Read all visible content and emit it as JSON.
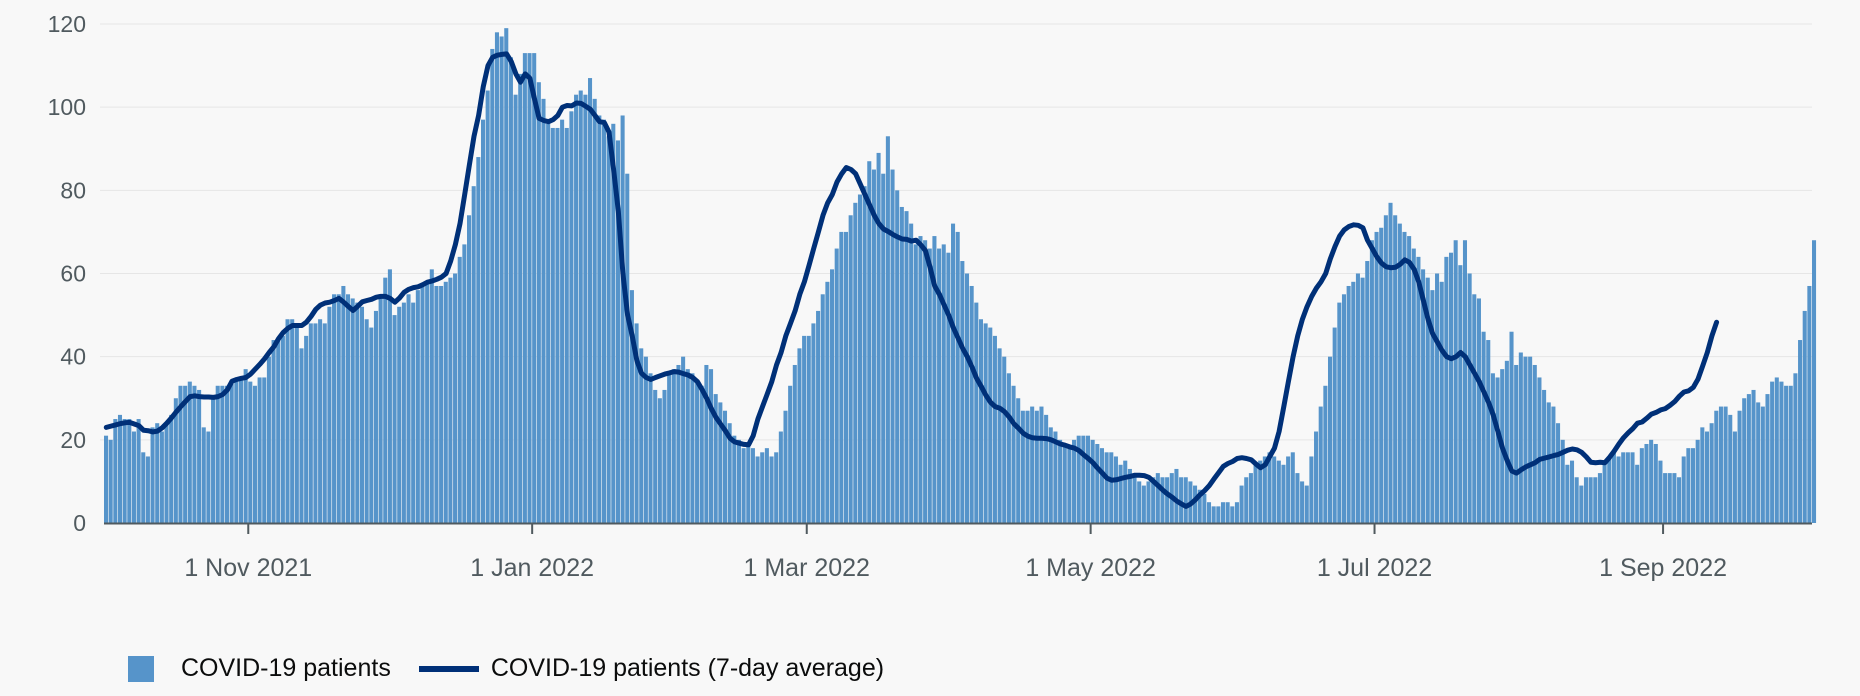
{
  "colors": {
    "bar": "#5694ca",
    "line": "#003078",
    "grid": "#e6e6e6",
    "axis": "#505a5f"
  },
  "chart_data": {
    "type": "bar",
    "title": "",
    "xlabel": "",
    "ylabel": "",
    "ylim": [
      0,
      120
    ],
    "yticks": [
      0,
      20,
      40,
      60,
      80,
      100,
      120
    ],
    "xlim": [
      "2021-10-01",
      "2022-10-03"
    ],
    "xticks": [
      {
        "date": "2021-11-01",
        "label": "1 Nov 2021"
      },
      {
        "date": "2022-01-01",
        "label": "1 Jan 2022"
      },
      {
        "date": "2022-03-01",
        "label": "1 Mar 2022"
      },
      {
        "date": "2022-05-01",
        "label": "1 May 2022"
      },
      {
        "date": "2022-07-01",
        "label": "1 Jul 2022"
      },
      {
        "date": "2022-09-01",
        "label": "1 Sep 2022"
      }
    ],
    "grid": true,
    "legend_position": "bottom-left",
    "start_date": "2021-10-01",
    "series": [
      {
        "name": "COVID-19 patients",
        "type": "bar",
        "values": [
          21,
          20,
          25,
          26,
          25,
          25,
          22,
          25,
          17,
          16,
          23,
          24,
          22,
          24,
          26,
          30,
          33,
          33,
          34,
          33,
          32,
          23,
          22,
          30,
          33,
          33,
          33,
          34,
          34,
          35,
          37,
          34,
          33,
          35,
          35,
          40,
          44,
          44,
          45,
          49,
          49,
          47,
          42,
          45,
          48,
          48,
          49,
          48,
          52,
          55,
          55,
          57,
          55,
          54,
          53,
          52,
          49,
          47,
          51,
          55,
          59,
          61,
          50,
          52,
          53,
          55,
          53,
          56,
          57,
          58,
          61,
          57,
          57,
          58,
          59,
          60,
          64,
          67,
          74,
          81,
          88,
          97,
          104,
          114,
          118,
          117,
          119,
          112,
          103,
          108,
          113,
          113,
          113,
          106,
          102,
          96,
          95,
          95,
          97,
          95,
          99,
          103,
          104,
          103,
          107,
          102,
          98,
          97,
          93,
          96,
          92,
          98,
          84,
          56,
          48,
          42,
          40,
          36,
          32,
          30,
          32,
          36,
          37,
          38,
          40,
          37,
          36,
          34,
          33,
          38,
          37,
          31,
          29,
          27,
          24,
          21,
          20,
          18,
          19,
          18,
          16,
          17,
          18,
          16,
          17,
          22,
          27,
          33,
          38,
          42,
          45,
          45,
          48,
          51,
          55,
          58,
          61,
          66,
          70,
          70,
          74,
          77,
          79,
          81,
          87,
          85,
          89,
          84,
          93,
          85,
          80,
          76,
          75,
          72,
          67,
          69,
          68,
          66,
          69,
          66,
          67,
          65,
          72,
          70,
          63,
          60,
          57,
          53,
          49,
          48,
          47,
          45,
          42,
          40,
          36,
          33,
          30,
          27,
          27,
          28,
          27,
          28,
          26,
          23,
          22,
          20,
          19,
          18,
          20,
          21,
          21,
          21,
          20,
          19,
          18,
          17,
          17,
          16,
          14,
          15,
          13,
          11,
          10,
          9,
          10,
          11,
          12,
          11,
          11,
          12,
          13,
          11,
          11,
          10,
          9,
          8,
          7,
          5,
          4,
          4,
          5,
          5,
          4,
          5,
          9,
          11,
          12,
          14,
          15,
          16,
          17,
          16,
          15,
          14,
          16,
          17,
          12,
          10,
          9,
          16,
          22,
          28,
          33,
          40,
          47,
          53,
          55,
          57,
          58,
          60,
          59,
          63,
          68,
          70,
          71,
          74,
          77,
          74,
          72,
          70,
          69,
          66,
          64,
          61,
          59,
          56,
          60,
          58,
          64,
          65,
          68,
          62,
          68,
          60,
          55,
          54,
          46,
          44,
          36,
          35,
          37,
          39,
          46,
          38,
          41,
          40,
          40,
          38,
          35,
          32,
          29,
          28,
          24,
          20,
          14,
          15,
          11,
          9,
          11,
          11,
          11,
          12,
          15,
          16,
          17,
          16,
          17,
          17,
          17,
          14,
          18,
          19,
          20,
          19,
          15,
          12,
          12,
          12,
          11,
          16,
          18,
          18,
          20,
          23,
          22,
          24,
          27,
          28,
          28,
          26,
          22,
          27,
          30,
          31,
          32,
          29,
          28,
          31,
          34,
          35,
          34,
          33,
          33,
          36,
          44,
          51,
          57,
          68
        ]
      },
      {
        "name": "COVID-19 patients (7-day average)",
        "type": "line",
        "values": [
          23.0,
          23.3,
          23.6,
          23.9,
          24.1,
          24.2,
          23.8,
          23.4,
          22.3,
          22.2,
          21.9,
          22.1,
          22.9,
          24.0,
          25.3,
          26.7,
          28.0,
          29.2,
          30.4,
          30.6,
          30.4,
          30.3,
          30.3,
          30.2,
          30.4,
          30.9,
          32.0,
          34.1,
          34.5,
          34.8,
          35.0,
          35.8,
          37.0,
          38.2,
          39.5,
          41.0,
          42.4,
          44.3,
          45.8,
          46.8,
          47.5,
          47.5,
          47.5,
          48.3,
          49.7,
          51.4,
          52.4,
          52.9,
          53.1,
          53.5,
          54.0,
          53.1,
          52.1,
          51.1,
          52.1,
          53.2,
          53.5,
          53.8,
          54.3,
          54.5,
          54.5,
          54.0,
          53.1,
          54.1,
          55.5,
          56.2,
          56.6,
          56.8,
          57.3,
          57.9,
          58.2,
          58.6,
          59.1,
          60.0,
          63.0,
          67.0,
          72.0,
          79.0,
          86.0,
          93.0,
          98.0,
          105.0,
          110.0,
          112.0,
          112.5,
          112.7,
          112.8,
          111.0,
          108.0,
          106.0,
          108.0,
          107.0,
          102.0,
          97.3,
          96.8,
          96.5,
          97.0,
          98.0,
          100.0,
          100.4,
          100.3,
          101.0,
          100.9,
          100.2,
          99.5,
          98.0,
          96.5,
          96.3,
          94.0,
          85.0,
          75.0,
          60.0,
          50.0,
          45.0,
          39.0,
          36.0,
          35.0,
          34.5,
          35.0,
          35.4,
          35.8,
          36.1,
          36.4,
          36.3,
          35.9,
          35.6,
          35.0,
          34.0,
          32.1,
          30.0,
          27.5,
          25.4,
          23.8,
          22.2,
          20.4,
          19.5,
          19.2,
          18.9,
          18.8,
          21.0,
          25.0,
          28.0,
          31.0,
          34.0,
          38.0,
          41.0,
          45.0,
          48.0,
          51.0,
          55.0,
          58.0,
          62.0,
          66.0,
          70.0,
          74.0,
          77.0,
          79.0,
          82.0,
          84.0,
          85.5,
          85.0,
          84.0,
          81.5,
          79.0,
          76.5,
          74.0,
          72.0,
          70.7,
          70.1,
          69.4,
          68.8,
          68.3,
          68.2,
          67.8,
          68.0,
          66.9,
          65.5,
          61.5,
          57.0,
          55.0,
          52.5,
          50.0,
          47.0,
          44.5,
          42.0,
          40.0,
          37.5,
          34.8,
          32.8,
          30.7,
          29.0,
          28.0,
          27.6,
          26.8,
          25.5,
          23.9,
          22.8,
          21.6,
          20.9,
          20.5,
          20.4,
          20.4,
          20.3,
          20.0,
          19.5,
          19.0,
          18.7,
          18.3,
          18.0,
          17.4,
          16.4,
          15.5,
          14.5,
          13.2,
          12.0,
          10.8,
          10.3,
          10.4,
          10.7,
          11.0,
          11.2,
          11.5,
          11.5,
          11.4,
          11.0,
          10.0,
          9.0,
          7.9,
          7.0,
          6.2,
          5.3,
          4.6,
          4.0,
          4.6,
          5.6,
          6.8,
          7.8,
          9.0,
          10.6,
          12.1,
          13.6,
          14.3,
          14.8,
          15.5,
          15.7,
          15.5,
          15.2,
          14.2,
          13.3,
          14.0,
          16.0,
          18.0,
          22.0,
          28.0,
          34.0,
          40.0,
          45.0,
          49.0,
          52.0,
          54.5,
          56.5,
          58.0,
          60.0,
          63.5,
          66.5,
          69.0,
          70.5,
          71.3,
          71.7,
          71.6,
          71.0,
          68.0,
          66.0,
          64.0,
          62.5,
          61.6,
          61.4,
          61.5,
          62.2,
          63.3,
          62.7,
          61.0,
          58.0,
          53.5,
          49.0,
          45.5,
          43.5,
          41.5,
          40.0,
          39.5,
          40.0,
          41.0,
          40.0,
          38.0,
          36.0,
          34.0,
          31.5,
          29.0,
          26.0,
          22.0,
          18.0,
          15.0,
          12.5,
          12.0,
          12.8,
          13.5,
          14.0,
          14.5,
          15.3,
          15.6,
          15.9,
          16.2,
          16.5,
          17.0,
          17.5,
          17.8,
          17.6,
          17.0,
          15.9,
          14.6,
          14.5,
          14.6,
          14.5,
          15.8,
          17.3,
          19.0,
          20.5,
          21.7,
          22.7,
          24.0,
          24.3,
          25.2,
          26.2,
          26.6,
          27.2,
          27.5,
          28.3,
          29.2,
          30.5,
          31.5,
          31.8,
          32.6,
          34.6,
          37.7,
          41.0,
          45.0,
          48.3
        ]
      }
    ]
  },
  "legend": {
    "bar_label": "COVID-19 patients",
    "line_label": "COVID-19 patients (7-day average)"
  }
}
